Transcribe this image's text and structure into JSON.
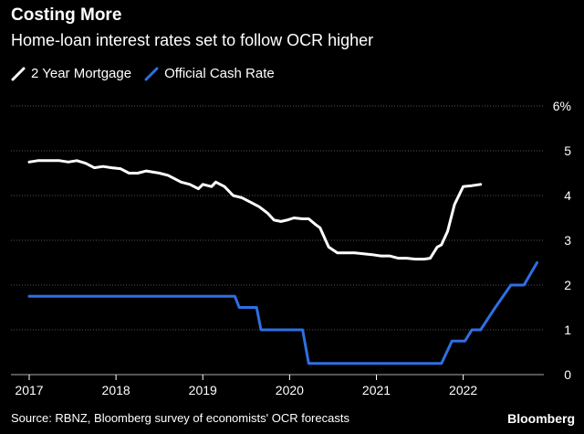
{
  "header": {
    "title": "Costing More",
    "subtitle": "Home-loan interest rates set to follow OCR higher"
  },
  "footer": {
    "source": "Source: RBNZ, Bloomberg survey of economists' OCR forecasts",
    "brand": "Bloomberg"
  },
  "colors": {
    "background": "#000000",
    "mortgage": "#ffffff",
    "ocr": "#2f6fe4",
    "grid": "#555555"
  },
  "chart_data": {
    "type": "line",
    "title": "Costing More",
    "subtitle": "Home-loan interest rates set to follow OCR higher",
    "xlabel": "",
    "ylabel": "",
    "xlim": [
      2017,
      2022.95
    ],
    "ylim": [
      0,
      6
    ],
    "x_ticks": [
      2017,
      2018,
      2019,
      2020,
      2021,
      2022
    ],
    "x_tick_labels": [
      "2017",
      "2018",
      "2019",
      "2020",
      "2021",
      "2022"
    ],
    "y_ticks": [
      0,
      1,
      2,
      3,
      4,
      5,
      6
    ],
    "y_tick_labels": [
      "0",
      "1",
      "2",
      "3",
      "4",
      "5",
      "6%"
    ],
    "grid": "horizontal",
    "legend": "top-left",
    "series": [
      {
        "name": "2 Year Mortgage",
        "color": "#ffffff",
        "x": [
          2017.0,
          2017.1,
          2017.2,
          2017.35,
          2017.45,
          2017.55,
          2017.65,
          2017.75,
          2017.85,
          2017.95,
          2018.05,
          2018.15,
          2018.25,
          2018.35,
          2018.5,
          2018.6,
          2018.75,
          2018.85,
          2018.95,
          2019.0,
          2019.1,
          2019.15,
          2019.25,
          2019.35,
          2019.45,
          2019.55,
          2019.65,
          2019.75,
          2019.82,
          2019.9,
          2019.97,
          2020.05,
          2020.15,
          2020.22,
          2020.3,
          2020.35,
          2020.45,
          2020.55,
          2020.65,
          2020.75,
          2020.85,
          2020.95,
          2021.05,
          2021.15,
          2021.25,
          2021.35,
          2021.45,
          2021.55,
          2021.62,
          2021.7,
          2021.75,
          2021.82,
          2021.9,
          2022.0,
          2022.1,
          2022.2
        ],
        "values": [
          4.75,
          4.78,
          4.78,
          4.78,
          4.75,
          4.78,
          4.72,
          4.62,
          4.65,
          4.62,
          4.6,
          4.5,
          4.5,
          4.55,
          4.5,
          4.45,
          4.3,
          4.25,
          4.15,
          4.25,
          4.2,
          4.3,
          4.2,
          4.0,
          3.95,
          3.85,
          3.75,
          3.6,
          3.45,
          3.42,
          3.45,
          3.5,
          3.48,
          3.48,
          3.35,
          3.28,
          2.85,
          2.72,
          2.72,
          2.72,
          2.7,
          2.68,
          2.65,
          2.65,
          2.6,
          2.6,
          2.58,
          2.58,
          2.6,
          2.85,
          2.9,
          3.2,
          3.8,
          4.2,
          4.22,
          4.25
        ]
      },
      {
        "name": "Official Cash Rate",
        "color": "#2f6fe4",
        "x": [
          2017.0,
          2019.37,
          2019.42,
          2019.62,
          2019.67,
          2020.15,
          2020.22,
          2021.75,
          2021.87,
          2022.02,
          2022.1,
          2022.2,
          2022.37,
          2022.55,
          2022.7,
          2022.85
        ],
        "values": [
          1.75,
          1.75,
          1.5,
          1.5,
          1.0,
          1.0,
          0.25,
          0.25,
          0.75,
          0.75,
          1.0,
          1.0,
          1.5,
          2.0,
          2.0,
          2.5
        ]
      }
    ]
  }
}
